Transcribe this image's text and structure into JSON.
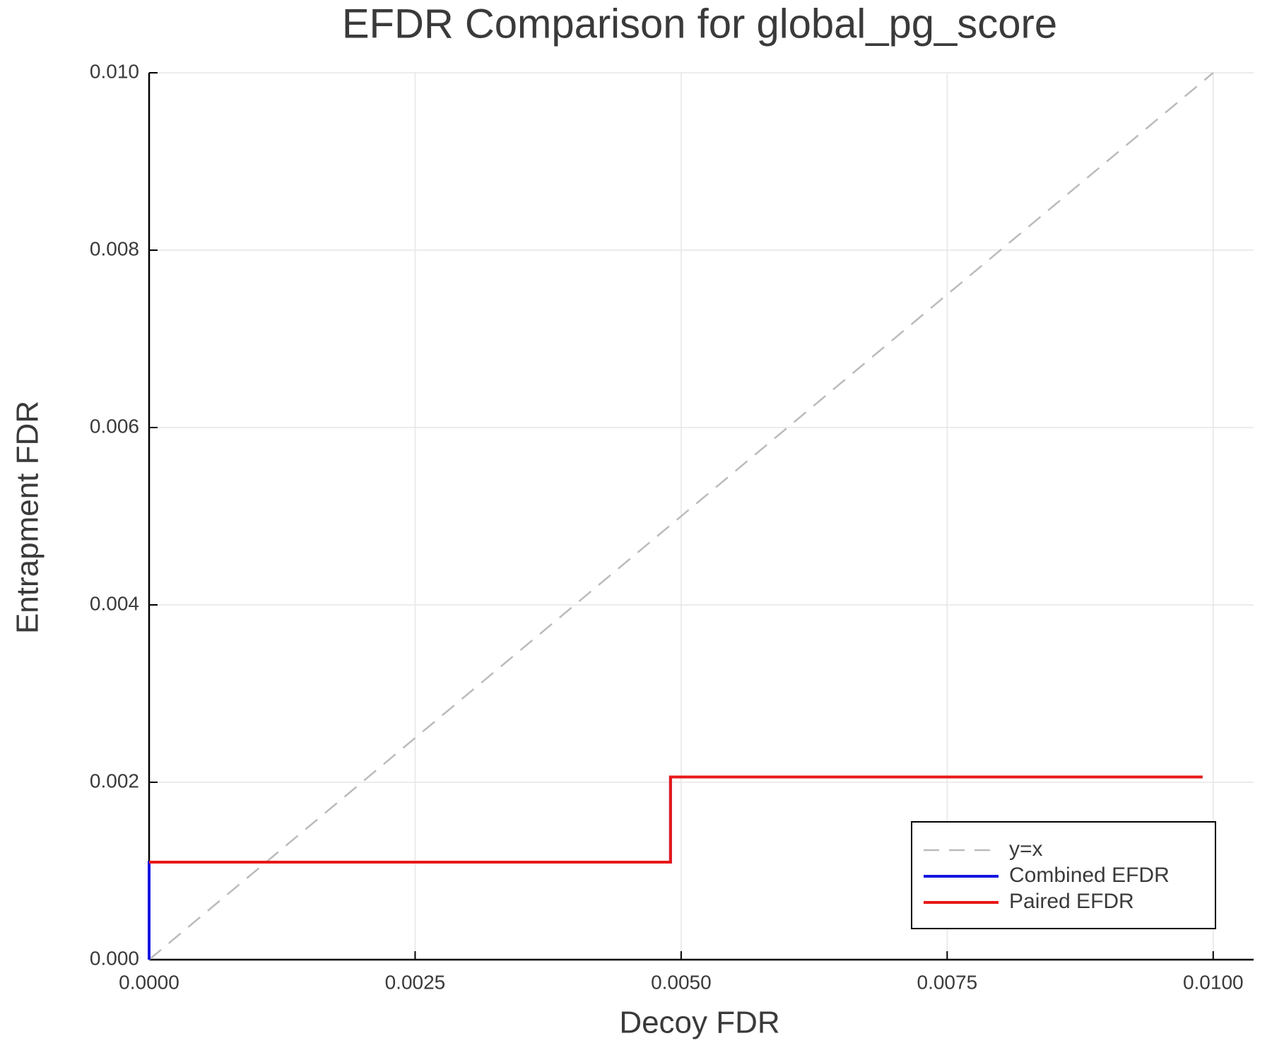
{
  "chart_data": {
    "type": "line",
    "title": "EFDR Comparison for global_pg_score",
    "x_label": "Decoy FDR",
    "y_label": "Entrapment FDR",
    "xlim": [
      0,
      0.01038
    ],
    "ylim": [
      0,
      0.01
    ],
    "xticks": [
      {
        "value": 0,
        "label": "0.0000"
      },
      {
        "value": 0.0025,
        "label": "0.0025"
      },
      {
        "value": 0.005,
        "label": "0.0050"
      },
      {
        "value": 0.0075,
        "label": "0.0075"
      },
      {
        "value": 0.01,
        "label": "0.0100"
      }
    ],
    "yticks": [
      {
        "value": 0,
        "label": "0.000"
      },
      {
        "value": 0.002,
        "label": "0.002"
      },
      {
        "value": 0.004,
        "label": "0.004"
      },
      {
        "value": 0.006,
        "label": "0.006"
      },
      {
        "value": 0.008,
        "label": "0.008"
      },
      {
        "value": 0.01,
        "label": "0.010"
      }
    ],
    "grid": true,
    "legend": "bottom-right",
    "series": [
      {
        "name": "y=x",
        "color": "#bbbbbb",
        "dashed": true,
        "x": [
          0,
          0.01
        ],
        "values": [
          0,
          0.01
        ]
      },
      {
        "name": "Combined EFDR",
        "color": "#1515e0",
        "x": [
          0,
          0,
          0.0049,
          0.0049,
          0.0099
        ],
        "values": [
          0,
          0.0011,
          0.0011,
          0.00206,
          0.00206
        ]
      },
      {
        "name": "Paired EFDR",
        "color": "#e81818",
        "x": [
          0,
          0.0049,
          0.0049,
          0.0099
        ],
        "values": [
          0.0011,
          0.0011,
          0.00206,
          0.00206
        ]
      }
    ]
  }
}
